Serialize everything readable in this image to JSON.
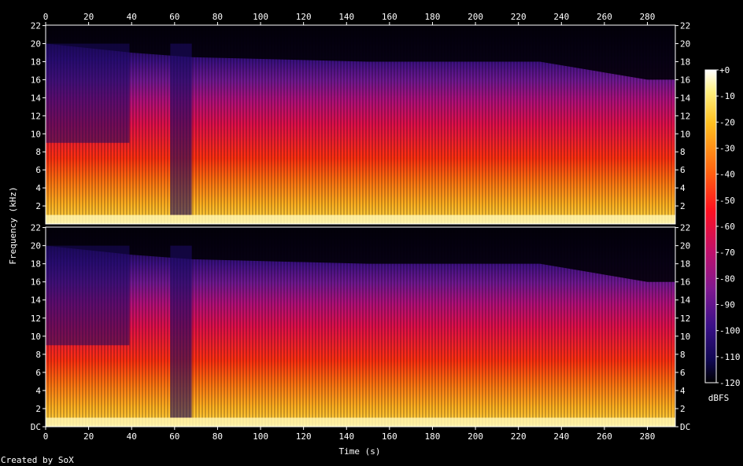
{
  "chart_data": {
    "type": "heatmap",
    "title": "",
    "xlabel": "Time (s)",
    "ylabel": "Frequency (kHz)",
    "xlim": [
      0,
      293
    ],
    "ylim": [
      0,
      22.05
    ],
    "x_ticks": [
      "0",
      "20",
      "40",
      "60",
      "80",
      "100",
      "120",
      "140",
      "160",
      "180",
      "200",
      "220",
      "240",
      "260",
      "280"
    ],
    "y_ticks_top": [
      "2",
      "4",
      "6",
      "8",
      "10",
      "12",
      "14",
      "16",
      "18",
      "20",
      "22"
    ],
    "y_ticks_bottom": [
      "DC",
      "2",
      "4",
      "6",
      "8",
      "10",
      "12",
      "14",
      "16",
      "18",
      "20",
      "22"
    ],
    "channels": 2,
    "colorbar": {
      "label": "dBFS",
      "ticks": [
        "+0",
        "-10",
        "-20",
        "-30",
        "-40",
        "-50",
        "-60",
        "-70",
        "-80",
        "-90",
        "-100",
        "-110",
        "-120"
      ],
      "range": [
        -120,
        0
      ]
    },
    "credit": "Created by SoX"
  },
  "colors": {
    "background": "#000000",
    "axis": "#ffffff"
  }
}
